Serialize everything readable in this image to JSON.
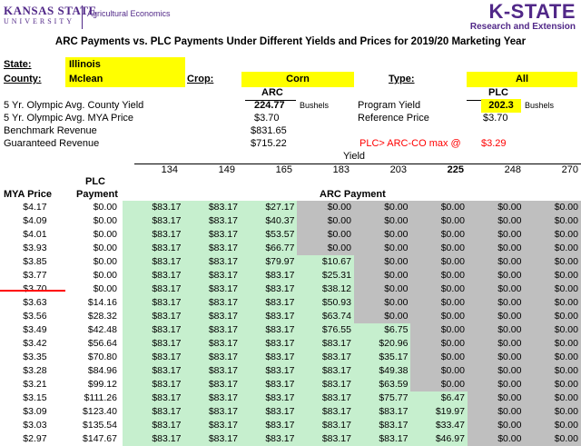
{
  "header": {
    "university_line1": "KANSAS STATE",
    "university_line2": "UNIVERSITY",
    "department": "Agricultural Economics",
    "brand": "K-STATE",
    "brand_sub": "Research and Extension"
  },
  "title": "ARC Payments vs. PLC Payments Under Different Yields and Prices for 2019/20 Marketing Year",
  "inputs": {
    "state_label": "State:",
    "state_value": "Illinois",
    "county_label": "County:",
    "county_value": "Mclean",
    "crop_label": "Crop:",
    "crop_value": "Corn",
    "type_label": "Type:",
    "type_value": "All"
  },
  "summary": {
    "arc_header": "ARC",
    "plc_header": "PLC",
    "county_yield_label": "5 Yr. Olympic Avg. County Yield",
    "county_yield_value": "224.77",
    "bushels1": "Bushels",
    "program_yield_label": "Program Yield",
    "program_yield_value": "202.3",
    "bushels2": "Bushels",
    "mya_label": "5 Yr. Olympic Avg. MYA Price",
    "mya_value": "$3.70",
    "ref_price_label": "Reference Price",
    "ref_price_value": "$3.70",
    "bench_label": "Benchmark Revenue",
    "bench_value": "$831.65",
    "guar_label": "Guaranteed Revenue",
    "guar_value": "$715.22",
    "plc_max_label": "PLC> ARC-CO max @",
    "plc_max_value": "$3.29"
  },
  "table": {
    "yield_label": "Yield",
    "yields": [
      "134",
      "149",
      "165",
      "183",
      "203",
      "225",
      "248",
      "270"
    ],
    "col_mya": "MYA Price",
    "col_plc_line1": "PLC",
    "col_plc_line2": "Payment",
    "col_arc": "ARC Payment",
    "rows": [
      {
        "price": "$4.17",
        "plc": "$0.00",
        "arc": [
          "$83.17",
          "$83.17",
          "$27.17",
          "$0.00",
          "$0.00",
          "$0.00",
          "$0.00",
          "$0.00"
        ],
        "green": 3
      },
      {
        "price": "$4.09",
        "plc": "$0.00",
        "arc": [
          "$83.17",
          "$83.17",
          "$40.37",
          "$0.00",
          "$0.00",
          "$0.00",
          "$0.00",
          "$0.00"
        ],
        "green": 3
      },
      {
        "price": "$4.01",
        "plc": "$0.00",
        "arc": [
          "$83.17",
          "$83.17",
          "$53.57",
          "$0.00",
          "$0.00",
          "$0.00",
          "$0.00",
          "$0.00"
        ],
        "green": 3
      },
      {
        "price": "$3.93",
        "plc": "$0.00",
        "arc": [
          "$83.17",
          "$83.17",
          "$66.77",
          "$0.00",
          "$0.00",
          "$0.00",
          "$0.00",
          "$0.00"
        ],
        "green": 3
      },
      {
        "price": "$3.85",
        "plc": "$0.00",
        "arc": [
          "$83.17",
          "$83.17",
          "$79.97",
          "$10.67",
          "$0.00",
          "$0.00",
          "$0.00",
          "$0.00"
        ],
        "green": 4
      },
      {
        "price": "$3.77",
        "plc": "$0.00",
        "arc": [
          "$83.17",
          "$83.17",
          "$83.17",
          "$25.31",
          "$0.00",
          "$0.00",
          "$0.00",
          "$0.00"
        ],
        "green": 4
      },
      {
        "price": "$3.70",
        "plc": "$0.00",
        "arc": [
          "$83.17",
          "$83.17",
          "$83.17",
          "$38.12",
          "$0.00",
          "$0.00",
          "$0.00",
          "$0.00"
        ],
        "green": 4
      },
      {
        "price": "$3.63",
        "plc": "$14.16",
        "arc": [
          "$83.17",
          "$83.17",
          "$83.17",
          "$50.93",
          "$0.00",
          "$0.00",
          "$0.00",
          "$0.00"
        ],
        "green": 4
      },
      {
        "price": "$3.56",
        "plc": "$28.32",
        "arc": [
          "$83.17",
          "$83.17",
          "$83.17",
          "$63.74",
          "$0.00",
          "$0.00",
          "$0.00",
          "$0.00"
        ],
        "green": 4
      },
      {
        "price": "$3.49",
        "plc": "$42.48",
        "arc": [
          "$83.17",
          "$83.17",
          "$83.17",
          "$76.55",
          "$6.75",
          "$0.00",
          "$0.00",
          "$0.00"
        ],
        "green": 5
      },
      {
        "price": "$3.42",
        "plc": "$56.64",
        "arc": [
          "$83.17",
          "$83.17",
          "$83.17",
          "$83.17",
          "$20.96",
          "$0.00",
          "$0.00",
          "$0.00"
        ],
        "green": 5
      },
      {
        "price": "$3.35",
        "plc": "$70.80",
        "arc": [
          "$83.17",
          "$83.17",
          "$83.17",
          "$83.17",
          "$35.17",
          "$0.00",
          "$0.00",
          "$0.00"
        ],
        "green": 5
      },
      {
        "price": "$3.28",
        "plc": "$84.96",
        "arc": [
          "$83.17",
          "$83.17",
          "$83.17",
          "$83.17",
          "$49.38",
          "$0.00",
          "$0.00",
          "$0.00"
        ],
        "green": 5
      },
      {
        "price": "$3.21",
        "plc": "$99.12",
        "arc": [
          "$83.17",
          "$83.17",
          "$83.17",
          "$83.17",
          "$63.59",
          "$0.00",
          "$0.00",
          "$0.00"
        ],
        "green": 5
      },
      {
        "price": "$3.15",
        "plc": "$111.26",
        "arc": [
          "$83.17",
          "$83.17",
          "$83.17",
          "$83.17",
          "$75.77",
          "$6.47",
          "$0.00",
          "$0.00"
        ],
        "green": 6
      },
      {
        "price": "$3.09",
        "plc": "$123.40",
        "arc": [
          "$83.17",
          "$83.17",
          "$83.17",
          "$83.17",
          "$83.17",
          "$19.97",
          "$0.00",
          "$0.00"
        ],
        "green": 6
      },
      {
        "price": "$3.03",
        "plc": "$135.54",
        "arc": [
          "$83.17",
          "$83.17",
          "$83.17",
          "$83.17",
          "$83.17",
          "$33.47",
          "$0.00",
          "$0.00"
        ],
        "green": 6
      },
      {
        "price": "$2.97",
        "plc": "$147.67",
        "arc": [
          "$83.17",
          "$83.17",
          "$83.17",
          "$83.17",
          "$83.17",
          "$46.97",
          "$0.00",
          "$0.00"
        ],
        "green": 6
      }
    ]
  }
}
